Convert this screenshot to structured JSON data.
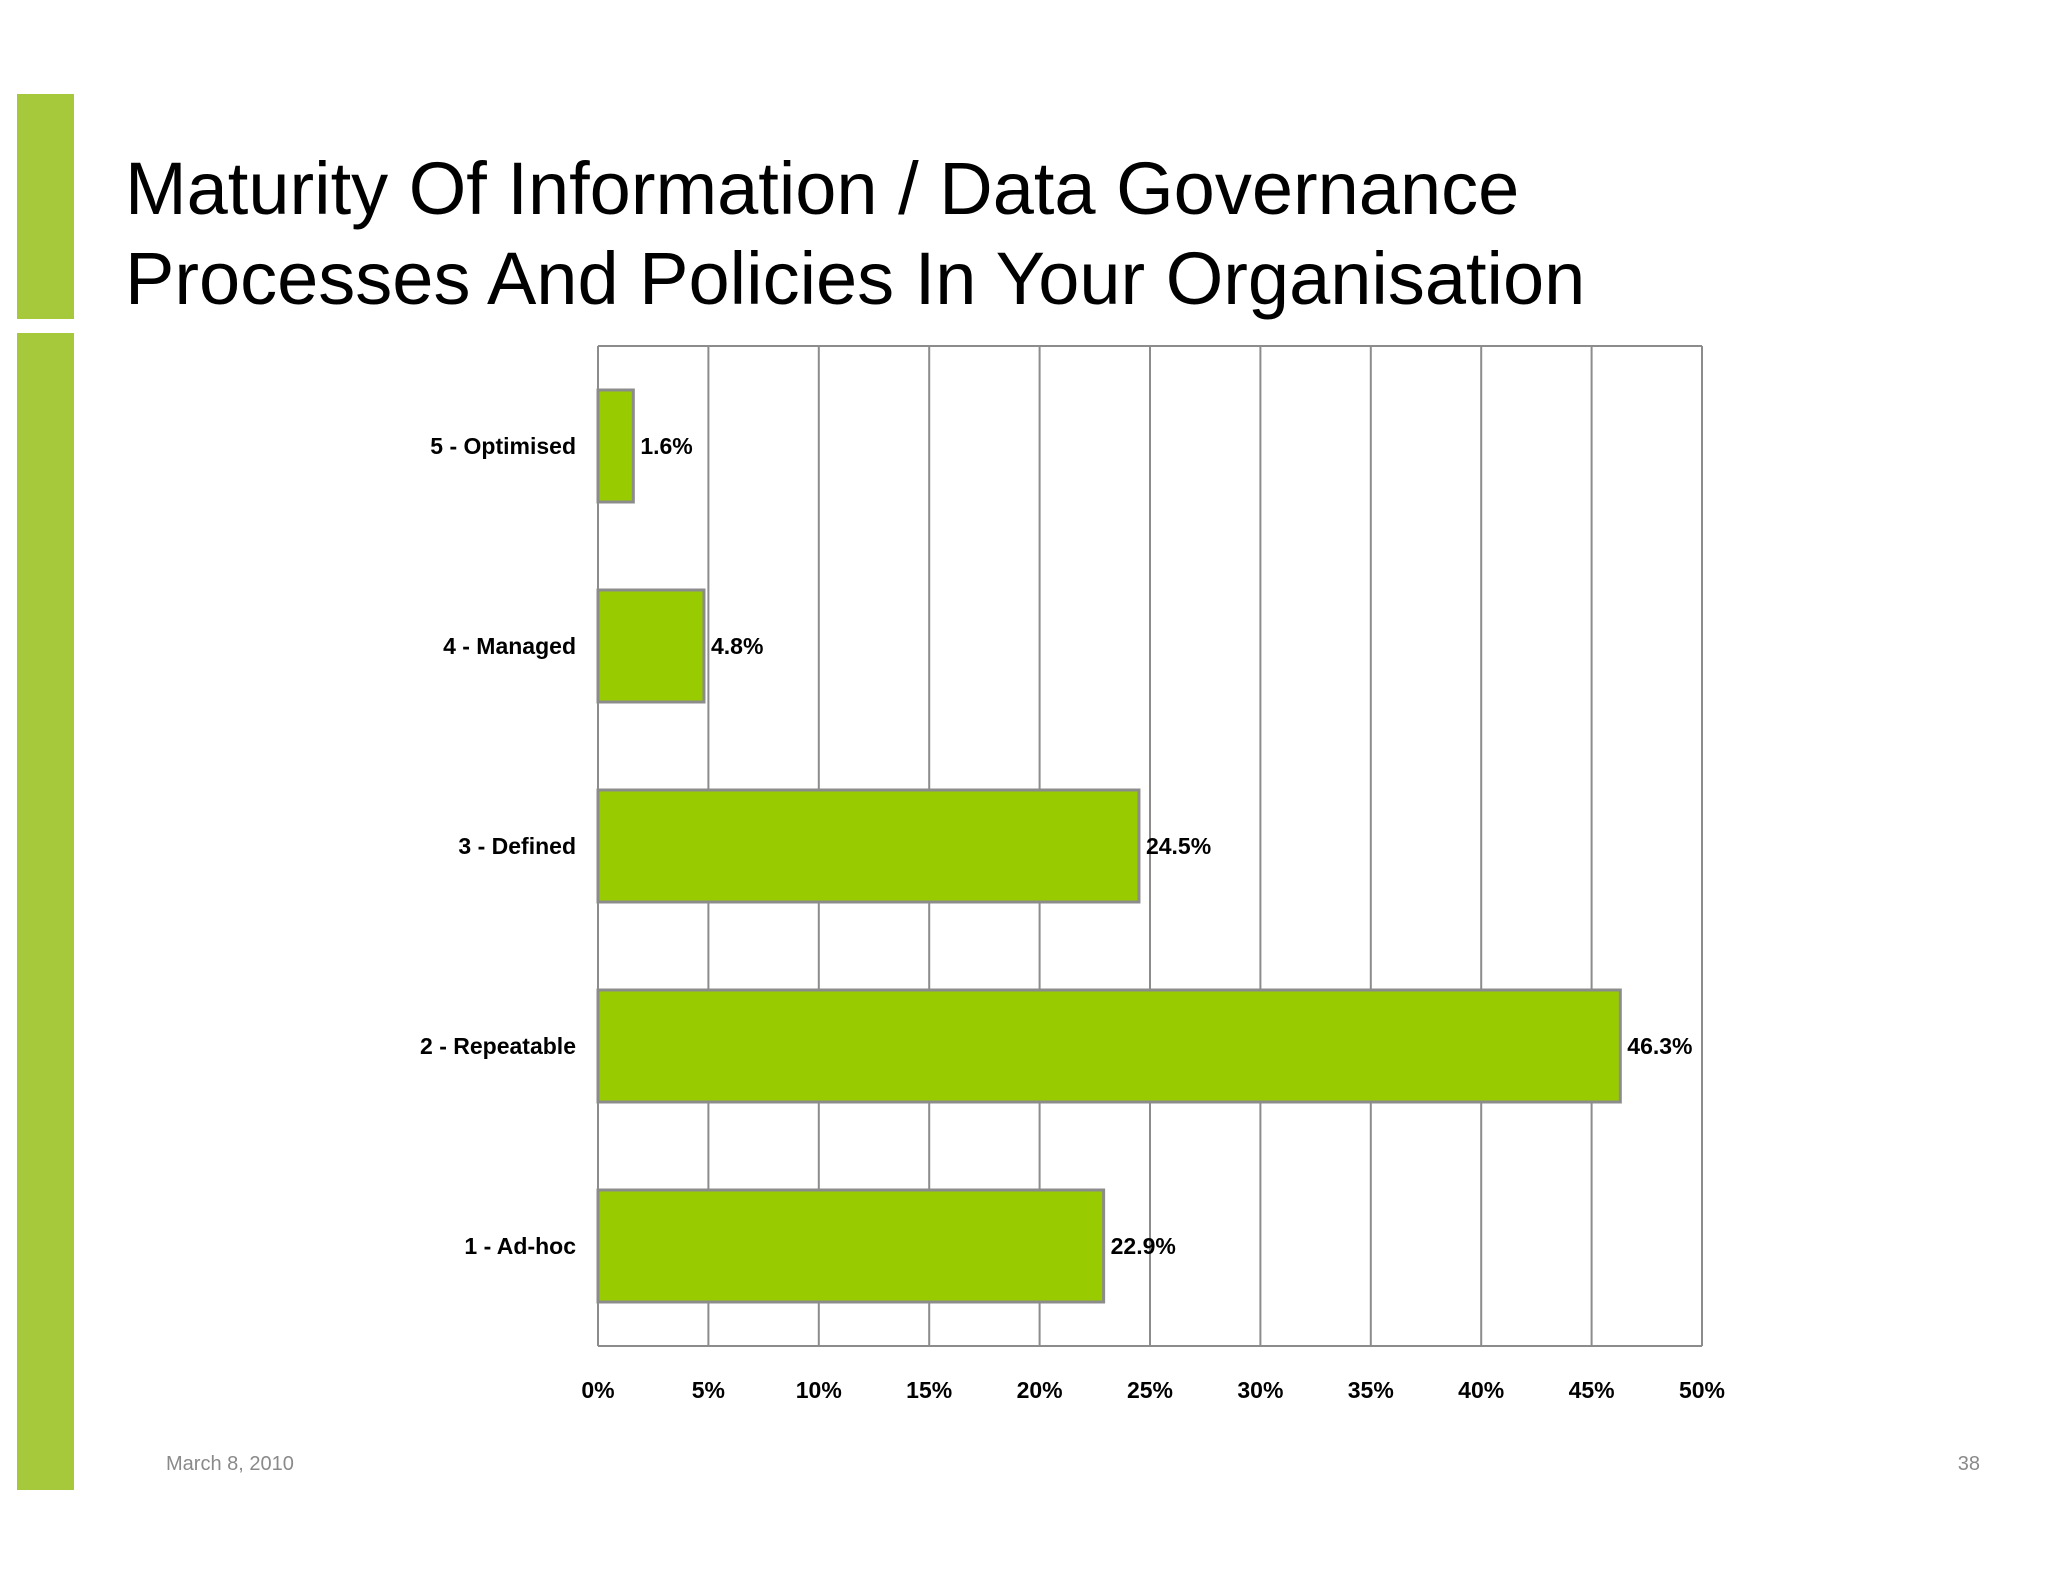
{
  "slide": {
    "title_line1": "Maturity Of Information / Data Governance",
    "title_line2": "Processes And Policies In Your Organisation",
    "date": "March 8, 2010",
    "page_number": "38"
  },
  "colors": {
    "accent": "#a6c93b",
    "bar_fill": "#99cc00",
    "bar_stroke": "#8c8c8c",
    "grid": "#8c8c8c"
  },
  "chart_data": {
    "type": "bar",
    "orientation": "horizontal",
    "categories": [
      "5 - Optimised",
      "4 - Managed",
      "3 - Defined",
      "2 - Repeatable",
      "1 - Ad-hoc"
    ],
    "values": [
      1.6,
      4.8,
      24.5,
      46.3,
      22.9
    ],
    "value_labels": [
      "1.6%",
      "4.8%",
      "24.5%",
      "46.3%",
      "22.9%"
    ],
    "xlim": [
      0,
      50
    ],
    "x_ticks": [
      0,
      5,
      10,
      15,
      20,
      25,
      30,
      35,
      40,
      45,
      50
    ],
    "x_tick_labels": [
      "0%",
      "5%",
      "10%",
      "15%",
      "20%",
      "25%",
      "30%",
      "35%",
      "40%",
      "45%",
      "50%"
    ],
    "grid": "vertical",
    "legend": "none"
  }
}
